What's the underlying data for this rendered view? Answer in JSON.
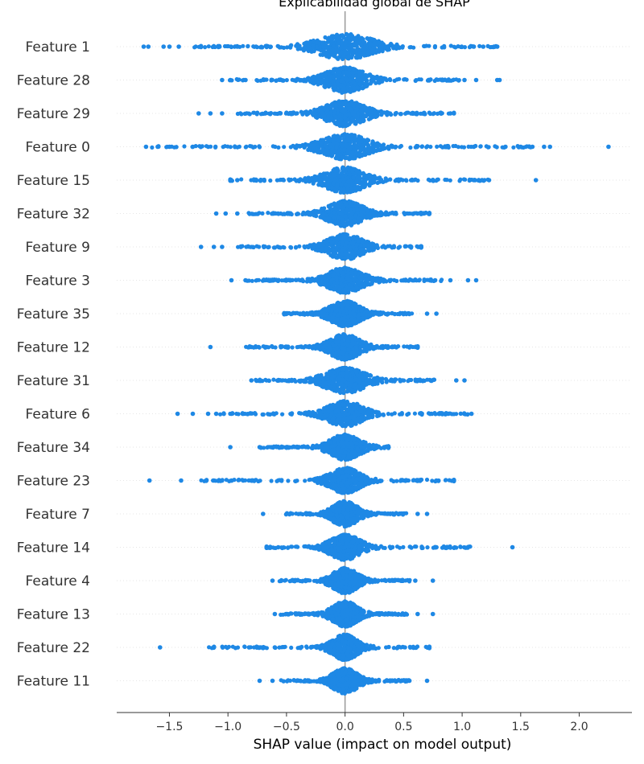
{
  "chart_data": {
    "type": "scatter",
    "subtype": "shap-beeswarm",
    "title": "Explicabilidad global de SHAP",
    "xlabel": "SHAP value (impact on model output)",
    "xlim": [
      -1.95,
      2.45
    ],
    "xticks": [
      -1.5,
      -1.0,
      -0.5,
      0.0,
      0.5,
      1.0,
      1.5,
      2.0
    ],
    "xtick_labels": [
      "−1.5",
      "−1.0",
      "−0.5",
      "0.0",
      "0.5",
      "1.0",
      "1.5",
      "2.0"
    ],
    "point_color": "#1e88e5",
    "zero_line_color": "#999999",
    "grid": false,
    "features": [
      {
        "name": "Feature 1",
        "min": -1.72,
        "max": 1.3,
        "spread": 0.55,
        "outliers": [
          -1.72,
          -1.68,
          -1.55,
          -1.5,
          -1.42,
          1.1,
          1.18,
          1.3
        ]
      },
      {
        "name": "Feature 28",
        "min": -1.05,
        "max": 1.32,
        "spread": 0.4,
        "outliers": [
          -1.05,
          -0.98,
          -0.85,
          1.02,
          1.12,
          1.3,
          1.32
        ]
      },
      {
        "name": "Feature 29",
        "min": -1.25,
        "max": 0.93,
        "spread": 0.4,
        "outliers": [
          -1.25,
          -1.15,
          -1.05,
          0.9,
          0.93
        ]
      },
      {
        "name": "Feature 0",
        "min": -1.7,
        "max": 2.25,
        "spread": 0.45,
        "outliers": [
          -1.7,
          -1.6,
          -1.5,
          -1.3,
          1.1,
          1.37,
          1.5,
          1.6,
          1.7,
          1.75,
          2.25
        ]
      },
      {
        "name": "Feature 15",
        "min": -0.98,
        "max": 1.63,
        "spread": 0.4,
        "outliers": [
          -0.98,
          -0.92,
          1.1,
          1.17,
          1.23,
          1.63
        ]
      },
      {
        "name": "Feature 32",
        "min": -1.1,
        "max": 0.72,
        "spread": 0.35,
        "outliers": [
          -1.1,
          -1.02,
          -0.92,
          0.62,
          0.72
        ]
      },
      {
        "name": "Feature 9",
        "min": -1.23,
        "max": 0.65,
        "spread": 0.35,
        "outliers": [
          -1.23,
          -1.12,
          -1.05
        ]
      },
      {
        "name": "Feature 3",
        "min": -0.97,
        "max": 1.12,
        "spread": 0.35,
        "outliers": [
          -0.97,
          -0.85,
          0.77,
          0.9,
          1.05,
          1.12
        ]
      },
      {
        "name": "Feature 35",
        "min": -0.52,
        "max": 0.78,
        "spread": 0.3,
        "outliers": [
          -0.52,
          0.7,
          0.78
        ]
      },
      {
        "name": "Feature 12",
        "min": -1.15,
        "max": 0.62,
        "spread": 0.3,
        "outliers": [
          -1.15,
          -0.8,
          -0.67
        ]
      },
      {
        "name": "Feature 31",
        "min": -0.8,
        "max": 1.02,
        "spread": 0.4,
        "outliers": [
          -0.8,
          0.95,
          1.02
        ]
      },
      {
        "name": "Feature 6",
        "min": -1.43,
        "max": 1.08,
        "spread": 0.35,
        "outliers": [
          -1.43,
          -1.3,
          -1.17,
          -1.1,
          -0.97,
          -0.87,
          0.8,
          0.88,
          1.02,
          1.08
        ]
      },
      {
        "name": "Feature 34",
        "min": -0.98,
        "max": 0.37,
        "spread": 0.3,
        "outliers": [
          -0.98,
          -0.73,
          -0.63
        ]
      },
      {
        "name": "Feature 23",
        "min": -1.67,
        "max": 0.93,
        "spread": 0.3,
        "outliers": [
          -1.67,
          -1.4,
          -1.12,
          -1.05,
          -0.97,
          -0.87,
          -0.8,
          0.78,
          0.93
        ]
      },
      {
        "name": "Feature 7",
        "min": -0.7,
        "max": 0.7,
        "spread": 0.25,
        "outliers": [
          -0.7,
          0.62,
          0.7
        ]
      },
      {
        "name": "Feature 14",
        "min": -0.67,
        "max": 1.43,
        "spread": 0.3,
        "outliers": [
          -0.67,
          -0.57,
          0.78,
          0.88,
          1.43
        ]
      },
      {
        "name": "Feature 4",
        "min": -0.62,
        "max": 0.75,
        "spread": 0.25,
        "outliers": [
          -0.62,
          0.6,
          0.75
        ]
      },
      {
        "name": "Feature 13",
        "min": -0.6,
        "max": 0.75,
        "spread": 0.25,
        "outliers": [
          -0.6,
          0.62,
          0.75
        ]
      },
      {
        "name": "Feature 22",
        "min": -1.58,
        "max": 0.72,
        "spread": 0.25,
        "outliers": [
          -1.58,
          -0.82,
          -0.72,
          -0.6,
          0.72
        ]
      },
      {
        "name": "Feature 11",
        "min": -0.73,
        "max": 0.7,
        "spread": 0.25,
        "outliers": [
          -0.73,
          -0.62,
          0.55,
          0.7
        ]
      }
    ]
  }
}
